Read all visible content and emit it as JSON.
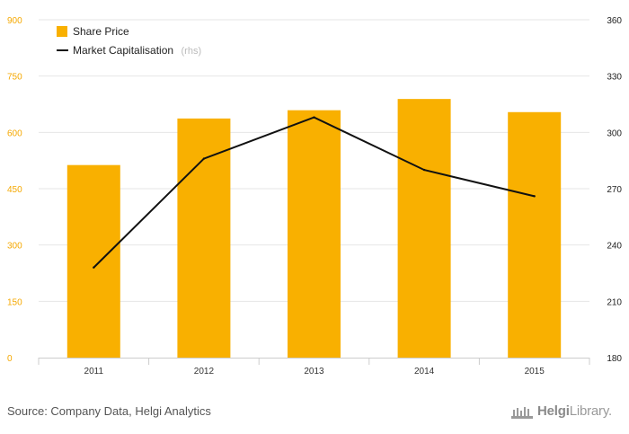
{
  "chart_data": {
    "type": "bar+line",
    "categories": [
      "2011",
      "2012",
      "2013",
      "2014",
      "2015"
    ],
    "series": [
      {
        "name": "Share Price",
        "type": "bar",
        "axis": "left",
        "color": "#f9b000",
        "values": [
          513,
          637,
          659,
          689,
          654
        ]
      },
      {
        "name": "Market Capitalisation",
        "name_note": "(rhs)",
        "type": "line",
        "axis": "right",
        "color": "#111111",
        "values": [
          228,
          286,
          308,
          280,
          266
        ]
      }
    ],
    "y_left": {
      "min": 0,
      "max": 900,
      "ticks": [
        "0",
        "150",
        "300",
        "450",
        "600",
        "750",
        "900"
      ]
    },
    "y_right": {
      "min": 180,
      "max": 360,
      "ticks": [
        "180",
        "210",
        "240",
        "270",
        "300",
        "330",
        "360"
      ]
    },
    "grid": true,
    "legend": "top-left"
  },
  "footer": {
    "source": "Source: Company Data, Helgi Analytics",
    "logo_text_1": "Helgi",
    "logo_text_2": "Library."
  }
}
